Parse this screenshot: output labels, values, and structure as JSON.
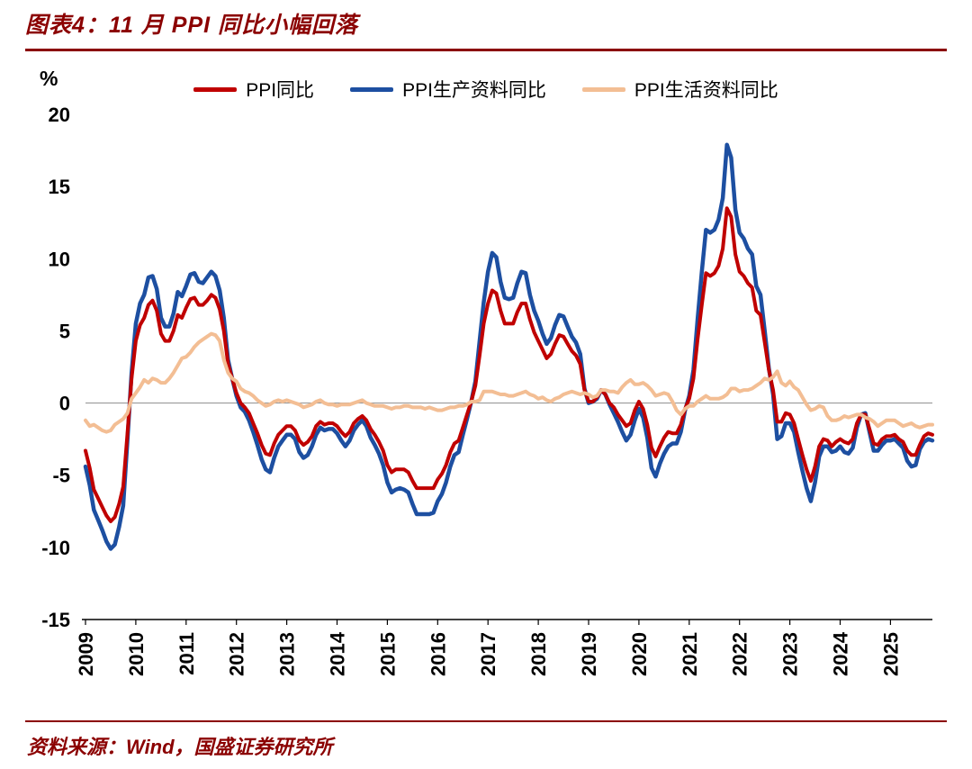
{
  "page": {
    "title": "图表4：11 月 PPI 同比小幅回落",
    "source": "资料来源：Wind，国盛证券研究所",
    "accent_color": "#8B0000"
  },
  "chart_data": {
    "type": "line",
    "title": "图表4：11 月 PPI 同比小幅回落",
    "unit_label": "%",
    "ylim": [
      -15,
      20
    ],
    "yticks": [
      20,
      15,
      10,
      5,
      0,
      -5,
      -10,
      -15
    ],
    "grid": false,
    "zero_line": true,
    "legend_position": "top",
    "x_start": "2009-01",
    "x_end": "2025-11",
    "x_frequency": "monthly",
    "xtick_labels": [
      "2009",
      "2010",
      "2011",
      "2012",
      "2013",
      "2014",
      "2015",
      "2016",
      "2017",
      "2018",
      "2019",
      "2020",
      "2021",
      "2022",
      "2023",
      "2024",
      "2025"
    ],
    "series": [
      {
        "name": "PPI同比",
        "color": "#C00000",
        "values": [
          -3.3,
          -4.5,
          -6.0,
          -6.6,
          -7.2,
          -7.8,
          -8.2,
          -7.9,
          -7.0,
          -5.8,
          -2.1,
          1.7,
          4.3,
          5.4,
          5.9,
          6.8,
          7.1,
          6.4,
          4.8,
          4.3,
          4.3,
          5.0,
          6.1,
          5.9,
          6.6,
          7.2,
          7.3,
          6.8,
          6.8,
          7.1,
          7.5,
          7.3,
          6.5,
          5.0,
          2.7,
          1.7,
          0.7,
          0.0,
          -0.3,
          -0.7,
          -1.4,
          -2.1,
          -2.9,
          -3.5,
          -3.6,
          -2.8,
          -2.2,
          -1.9,
          -1.6,
          -1.6,
          -1.9,
          -2.6,
          -2.9,
          -2.7,
          -2.3,
          -1.6,
          -1.3,
          -1.5,
          -1.4,
          -1.4,
          -1.6,
          -2.0,
          -2.3,
          -2.0,
          -1.4,
          -1.1,
          -0.9,
          -1.2,
          -1.8,
          -2.2,
          -2.7,
          -3.3,
          -4.3,
          -4.8,
          -4.6,
          -4.6,
          -4.6,
          -4.8,
          -5.4,
          -5.9,
          -5.9,
          -5.9,
          -5.9,
          -5.9,
          -5.3,
          -4.9,
          -4.3,
          -3.4,
          -2.8,
          -2.6,
          -1.7,
          -0.8,
          0.1,
          1.2,
          3.3,
          5.5,
          6.9,
          7.8,
          7.6,
          6.4,
          5.5,
          5.5,
          5.5,
          6.3,
          6.9,
          6.9,
          5.8,
          4.9,
          4.3,
          3.7,
          3.1,
          3.4,
          4.1,
          4.7,
          4.6,
          4.1,
          3.6,
          3.3,
          2.7,
          0.9,
          0.1,
          0.1,
          0.4,
          0.9,
          0.6,
          0.0,
          -0.3,
          -0.8,
          -1.2,
          -1.6,
          -1.4,
          -0.5,
          0.1,
          -0.4,
          -1.5,
          -3.1,
          -3.7,
          -3.0,
          -2.4,
          -2.0,
          -2.1,
          -2.1,
          -1.5,
          -0.4,
          0.3,
          1.7,
          4.4,
          6.8,
          9.0,
          8.8,
          9.0,
          9.5,
          10.7,
          13.5,
          12.9,
          10.3,
          9.1,
          8.8,
          8.3,
          8.0,
          6.4,
          6.1,
          4.2,
          2.3,
          0.9,
          -1.3,
          -1.3,
          -0.7,
          -0.8,
          -1.4,
          -2.5,
          -3.6,
          -4.6,
          -5.4,
          -4.4,
          -3.0,
          -2.5,
          -2.6,
          -3.0,
          -2.7,
          -2.5,
          -2.7,
          -2.8,
          -2.5,
          -1.4,
          -0.8,
          -0.8,
          -1.8,
          -2.8,
          -2.9,
          -2.5,
          -2.3,
          -2.3,
          -2.2,
          -2.5,
          -2.7,
          -3.3,
          -3.6,
          -3.6,
          -2.9,
          -2.3,
          -2.1,
          -2.2
        ]
      },
      {
        "name": "PPI生产资料同比",
        "color": "#1D4FA1",
        "values": [
          -4.4,
          -5.7,
          -7.4,
          -8.1,
          -8.8,
          -9.6,
          -10.1,
          -9.8,
          -8.6,
          -7.1,
          -2.6,
          2.1,
          5.5,
          6.9,
          7.5,
          8.7,
          8.8,
          7.9,
          5.9,
          5.3,
          5.3,
          6.2,
          7.7,
          7.4,
          8.1,
          8.9,
          9.0,
          8.4,
          8.3,
          8.7,
          9.1,
          8.8,
          7.8,
          5.9,
          3.0,
          1.7,
          0.5,
          -0.3,
          -0.6,
          -1.2,
          -2.0,
          -2.9,
          -3.9,
          -4.6,
          -4.8,
          -3.8,
          -3.0,
          -2.6,
          -2.2,
          -2.2,
          -2.5,
          -3.4,
          -3.8,
          -3.6,
          -3.0,
          -2.2,
          -1.7,
          -1.9,
          -1.8,
          -1.8,
          -2.1,
          -2.6,
          -3.0,
          -2.6,
          -1.9,
          -1.5,
          -1.2,
          -1.6,
          -2.4,
          -2.9,
          -3.5,
          -4.3,
          -5.5,
          -6.2,
          -6.0,
          -5.9,
          -6.0,
          -6.2,
          -7.0,
          -7.7,
          -7.7,
          -7.7,
          -7.7,
          -7.6,
          -6.8,
          -6.3,
          -5.5,
          -4.4,
          -3.6,
          -3.4,
          -2.2,
          -1.1,
          0.1,
          1.5,
          4.3,
          7.0,
          9.1,
          10.4,
          10.1,
          8.4,
          7.3,
          7.2,
          7.3,
          8.3,
          9.1,
          9.0,
          7.5,
          6.4,
          5.7,
          4.8,
          4.1,
          4.5,
          5.4,
          6.1,
          6.0,
          5.3,
          4.6,
          4.2,
          3.4,
          1.0,
          0.0,
          0.1,
          0.3,
          0.9,
          0.6,
          -0.1,
          -0.7,
          -1.3,
          -2.0,
          -2.6,
          -2.2,
          -1.2,
          -0.4,
          -1.0,
          -2.4,
          -4.5,
          -5.1,
          -4.2,
          -3.5,
          -3.0,
          -2.8,
          -2.8,
          -2.0,
          -0.5,
          0.5,
          2.3,
          5.8,
          9.1,
          12.0,
          11.8,
          12.0,
          12.7,
          14.2,
          17.9,
          17.0,
          13.4,
          11.8,
          11.4,
          10.7,
          10.3,
          8.1,
          7.5,
          5.0,
          2.4,
          0.6,
          -2.5,
          -2.3,
          -1.4,
          -1.4,
          -2.0,
          -3.4,
          -4.7,
          -5.9,
          -6.8,
          -5.5,
          -3.7,
          -3.0,
          -3.0,
          -3.4,
          -3.3,
          -3.0,
          -3.4,
          -3.5,
          -3.1,
          -1.7,
          -0.8,
          -0.7,
          -2.0,
          -3.3,
          -3.3,
          -2.9,
          -2.6,
          -2.6,
          -2.5,
          -2.8,
          -3.1,
          -4.0,
          -4.4,
          -4.3,
          -3.2,
          -2.7,
          -2.5,
          -2.6
        ]
      },
      {
        "name": "PPI生活资料同比",
        "color": "#F3BE94",
        "values": [
          -1.2,
          -1.6,
          -1.5,
          -1.7,
          -1.9,
          -2.0,
          -1.9,
          -1.5,
          -1.3,
          -1.1,
          -0.7,
          0.3,
          0.7,
          1.1,
          1.6,
          1.4,
          1.7,
          1.6,
          1.4,
          1.4,
          1.7,
          2.1,
          2.6,
          3.1,
          3.2,
          3.5,
          3.9,
          4.2,
          4.4,
          4.6,
          4.8,
          4.7,
          4.3,
          3.0,
          2.1,
          1.7,
          1.5,
          1.0,
          0.8,
          0.7,
          0.5,
          0.2,
          0.0,
          -0.2,
          -0.1,
          0.1,
          0.2,
          0.1,
          0.2,
          0.1,
          0.0,
          -0.1,
          -0.3,
          -0.2,
          -0.1,
          0.1,
          0.2,
          0.0,
          -0.1,
          -0.1,
          -0.2,
          -0.1,
          -0.1,
          -0.1,
          0.0,
          0.1,
          0.2,
          0.0,
          -0.1,
          -0.2,
          -0.2,
          -0.2,
          -0.3,
          -0.4,
          -0.3,
          -0.3,
          -0.2,
          -0.2,
          -0.3,
          -0.3,
          -0.3,
          -0.4,
          -0.3,
          -0.4,
          -0.5,
          -0.5,
          -0.4,
          -0.3,
          -0.3,
          -0.2,
          -0.2,
          -0.1,
          0.1,
          0.1,
          0.2,
          0.8,
          0.8,
          0.8,
          0.7,
          0.6,
          0.6,
          0.5,
          0.5,
          0.6,
          0.7,
          0.8,
          0.6,
          0.5,
          0.3,
          0.4,
          0.2,
          0.1,
          0.3,
          0.4,
          0.6,
          0.7,
          0.8,
          0.7,
          0.6,
          0.7,
          0.6,
          0.4,
          0.5,
          0.9,
          0.9,
          0.8,
          0.8,
          0.7,
          1.1,
          1.4,
          1.6,
          1.3,
          1.3,
          1.4,
          1.2,
          0.9,
          0.5,
          0.6,
          0.7,
          0.6,
          0.1,
          -0.5,
          -0.8,
          -0.4,
          -0.2,
          -0.2,
          0.1,
          0.3,
          0.5,
          0.3,
          0.3,
          0.3,
          0.4,
          0.6,
          1.0,
          1.0,
          0.8,
          0.9,
          0.9,
          1.0,
          1.2,
          1.4,
          1.7,
          1.6,
          1.8,
          2.2,
          1.4,
          1.2,
          1.5,
          1.1,
          0.9,
          0.4,
          -0.1,
          -0.5,
          -0.4,
          -0.2,
          -0.3,
          -0.9,
          -1.2,
          -1.2,
          -1.1,
          -0.9,
          -1.0,
          -0.9,
          -0.8,
          -0.8,
          -1.0,
          -1.1,
          -1.3,
          -1.6,
          -1.4,
          -1.2,
          -1.2,
          -1.2,
          -1.4,
          -1.6,
          -1.5,
          -1.4,
          -1.6,
          -1.7,
          -1.6,
          -1.5,
          -1.5
        ]
      }
    ]
  }
}
